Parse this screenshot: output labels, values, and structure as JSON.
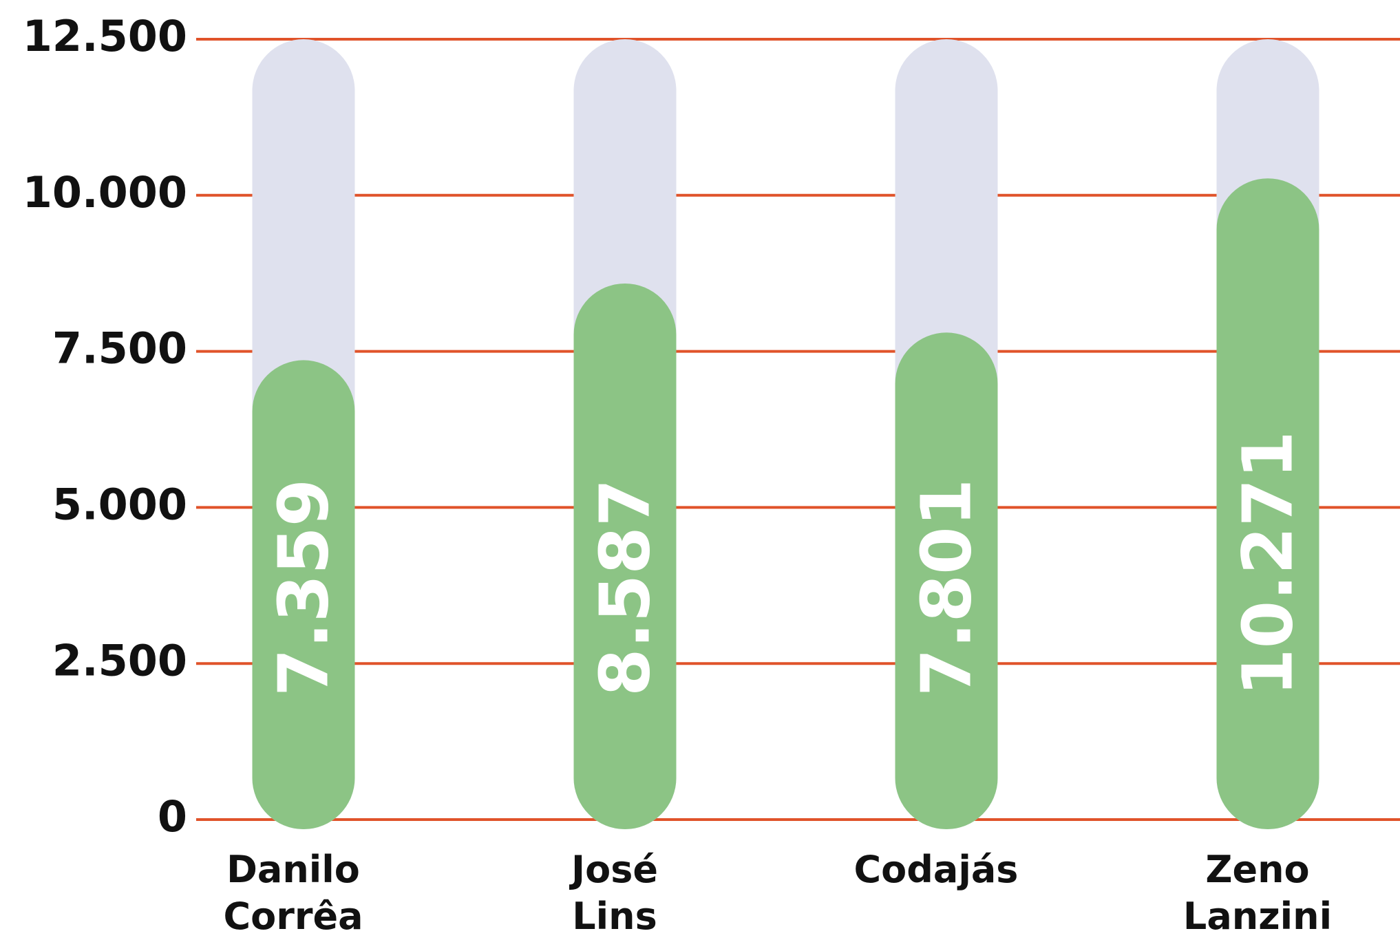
{
  "chart_data": {
    "type": "bar",
    "categories": [
      "Danilo Corrêa",
      "José Lins",
      "Codajás",
      "Zeno Lanzini"
    ],
    "values": [
      7359,
      8587,
      7801,
      10271
    ],
    "value_labels": [
      "7.359",
      "8.587",
      "7.801",
      "10.271"
    ],
    "color": "#8cc485",
    "track_color": "#dfe1ee",
    "grid_color": "#e0532a",
    "ylim": [
      0,
      12500
    ],
    "yticks": [
      0,
      {
        "value": 2500,
        "label": "2.500"
      },
      {
        "value": 5000,
        "label": "5.000"
      },
      {
        "value": 7500,
        "label": "7.500"
      },
      {
        "value": 10000,
        "label": "10.000"
      },
      {
        "value": 12500,
        "label": "12.500"
      }
    ],
    "grid": true
  }
}
